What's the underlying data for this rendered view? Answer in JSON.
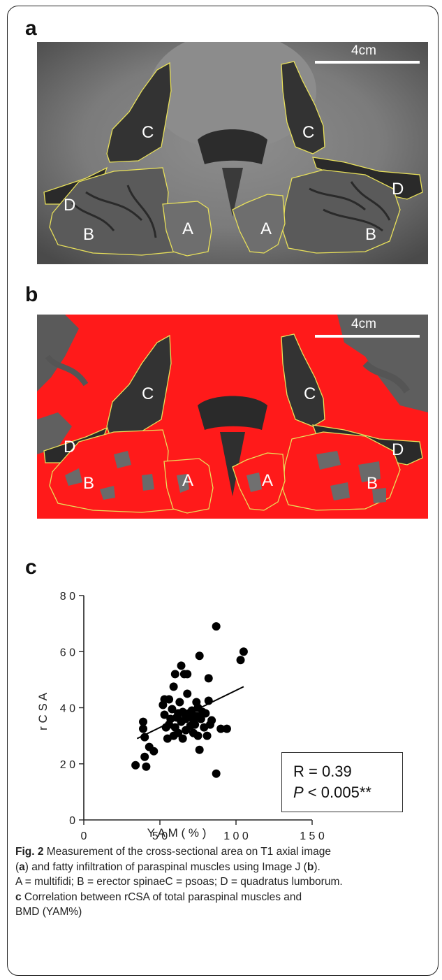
{
  "panels": {
    "a": {
      "letter": "a",
      "scale_label": "4cm",
      "regions": [
        "C",
        "C",
        "D",
        "D",
        "B",
        "B",
        "A",
        "A"
      ]
    },
    "b": {
      "letter": "b",
      "scale_label": "4cm",
      "regions": [
        "C",
        "C",
        "D",
        "D",
        "B",
        "B",
        "A",
        "A"
      ]
    },
    "c": {
      "letter": "c"
    }
  },
  "stats": {
    "r_text": "R = 0.39",
    "p_italic": "P",
    "p_text": " < 0.005**"
  },
  "caption": {
    "fig_label": "Fig. 2",
    "line1": " Measurement of the cross-sectional area on T1 axial image",
    "l2_open": "(",
    "l2_a": "a",
    "l2_mid": ") and fatty infiltration of paraspinal muscles using Image J (",
    "l2_b": "b",
    "l2_close": ").",
    "line3": "A = multifidi; B = erector spinaeC = psoas; D = quadratus lumborum.",
    "l4_c": "c",
    "l4_text": " Correlation between rCSA of total paraspinal muscles and",
    "line5": "BMD (YAM%)"
  },
  "colors": {
    "fat_overlay": "#ff1a1a",
    "outline": "#e8e05a",
    "mri_gray": "#7a7a7a"
  },
  "chart_data": {
    "type": "scatter",
    "xlabel": "Y A M ( % )",
    "ylabel": "r C S A",
    "xlim": [
      0,
      150
    ],
    "ylim": [
      0,
      80
    ],
    "xticks": [
      "0",
      "5 0",
      "1 0 0",
      "1 5 0"
    ],
    "yticks": [
      "0",
      "2 0",
      "4 0",
      "6 0",
      "8 0"
    ],
    "grid": false,
    "regression_line": {
      "x": [
        35,
        105
      ],
      "y": [
        29,
        47.5
      ]
    },
    "points": [
      [
        34,
        19.5
      ],
      [
        39,
        35
      ],
      [
        39,
        32.5
      ],
      [
        40,
        29.5
      ],
      [
        40,
        22.5
      ],
      [
        41,
        19
      ],
      [
        43,
        26
      ],
      [
        46,
        24.5
      ],
      [
        52,
        41
      ],
      [
        53,
        43
      ],
      [
        53,
        37.5
      ],
      [
        54,
        33
      ],
      [
        55,
        29
      ],
      [
        56,
        34
      ],
      [
        56,
        43
      ],
      [
        57,
        36
      ],
      [
        58,
        39.5
      ],
      [
        59,
        30
      ],
      [
        59,
        47.5
      ],
      [
        60,
        52
      ],
      [
        60,
        33
      ],
      [
        61,
        36.5
      ],
      [
        62,
        38
      ],
      [
        62,
        31
      ],
      [
        63,
        42
      ],
      [
        64,
        55
      ],
      [
        64,
        35
      ],
      [
        65,
        29
      ],
      [
        65,
        38.5
      ],
      [
        66,
        52
      ],
      [
        67,
        32
      ],
      [
        67,
        36
      ],
      [
        68,
        52
      ],
      [
        68,
        45
      ],
      [
        69,
        38
      ],
      [
        70,
        33.5
      ],
      [
        70,
        37
      ],
      [
        71,
        39
      ],
      [
        72,
        31
      ],
      [
        72,
        35.5
      ],
      [
        73,
        34
      ],
      [
        74,
        42
      ],
      [
        74,
        37
      ],
      [
        75,
        30
      ],
      [
        75,
        40
      ],
      [
        76,
        58.5
      ],
      [
        76,
        25
      ],
      [
        77,
        36
      ],
      [
        78,
        38.5
      ],
      [
        79,
        33
      ],
      [
        80,
        38
      ],
      [
        81,
        30
      ],
      [
        82,
        42.5
      ],
      [
        82,
        50.5
      ],
      [
        83,
        34
      ],
      [
        84,
        35.5
      ],
      [
        87,
        16.5
      ],
      [
        87,
        69
      ],
      [
        90,
        32.5
      ],
      [
        94,
        32.5
      ],
      [
        103,
        57
      ],
      [
        105,
        60
      ]
    ]
  }
}
